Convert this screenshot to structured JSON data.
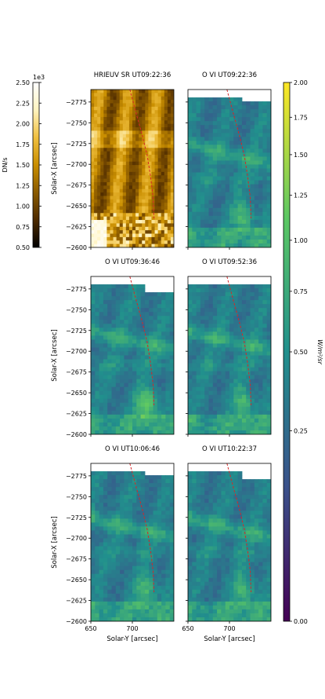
{
  "chart_data": {
    "type": "heatmap",
    "panels": [
      {
        "title": "HRIEUV SR UT09:22:36",
        "colormap": "solar",
        "row": 0,
        "col": 0,
        "show_ylabel": true,
        "show_xlabel": false
      },
      {
        "title": "O VI UT09:22:36",
        "colormap": "viridis",
        "row": 0,
        "col": 1,
        "show_ylabel": false,
        "show_xlabel": false
      },
      {
        "title": "O VI UT09:36:46",
        "colormap": "viridis",
        "row": 1,
        "col": 0,
        "show_ylabel": true,
        "show_xlabel": false
      },
      {
        "title": "O VI UT09:52:36",
        "colormap": "viridis",
        "row": 1,
        "col": 1,
        "show_ylabel": false,
        "show_xlabel": false
      },
      {
        "title": "O VI UT10:06:46",
        "colormap": "viridis",
        "row": 2,
        "col": 0,
        "show_ylabel": true,
        "show_xlabel": true
      },
      {
        "title": "O VI UT10:22:37",
        "colormap": "viridis",
        "row": 2,
        "col": 1,
        "show_ylabel": false,
        "show_xlabel": true
      }
    ],
    "xlabel": "Solar-Y [arcsec]",
    "ylabel": "Solar-X [arcsec]",
    "xlim": [
      650,
      750
    ],
    "ylim": [
      -2600,
      -2790
    ],
    "xticks": [
      650,
      700
    ],
    "yticks": [
      -2775,
      -2750,
      -2725,
      -2700,
      -2675,
      -2650,
      -2625,
      -2600
    ],
    "curve": {
      "color": "#d62728",
      "style": "dashed",
      "x": [
        697,
        705,
        712,
        718,
        722,
        725,
        726
      ],
      "y": [
        -2790,
        -2760,
        -2735,
        -2710,
        -2685,
        -2660,
        -2635
      ]
    },
    "colorbar_left": {
      "label": "DN/s",
      "offset_text": "1e3",
      "range": [
        0.5,
        2.5
      ],
      "ticks": [
        0.5,
        0.75,
        1.0,
        1.25,
        1.5,
        1.75,
        2.0,
        2.25,
        2.5
      ],
      "tick_labels": [
        "0.50",
        "0.75",
        "1.00",
        "1.25",
        "1.50",
        "1.75",
        "2.00",
        "2.25",
        "2.50"
      ]
    },
    "colorbar_right": {
      "label": "W/m²/sr",
      "scale": "sqrt",
      "range": [
        0.0,
        2.0
      ],
      "ticks": [
        0.0,
        0.25,
        0.5,
        0.75,
        1.0,
        1.25,
        1.5,
        1.75,
        2.0
      ],
      "tick_labels": [
        "0.00",
        "0.25",
        "0.50",
        "0.75",
        "1.00",
        "1.25",
        "1.50",
        "1.75",
        "2.00"
      ]
    },
    "colors": {
      "solar": [
        "#000000",
        "#4d2a00",
        "#8a5a00",
        "#c98e00",
        "#f0c040",
        "#fff4c0",
        "#ffffff"
      ],
      "viridis": [
        "#440154",
        "#3b528b",
        "#21908d",
        "#5dc863",
        "#fde725"
      ],
      "missing": "#ffffff"
    }
  }
}
